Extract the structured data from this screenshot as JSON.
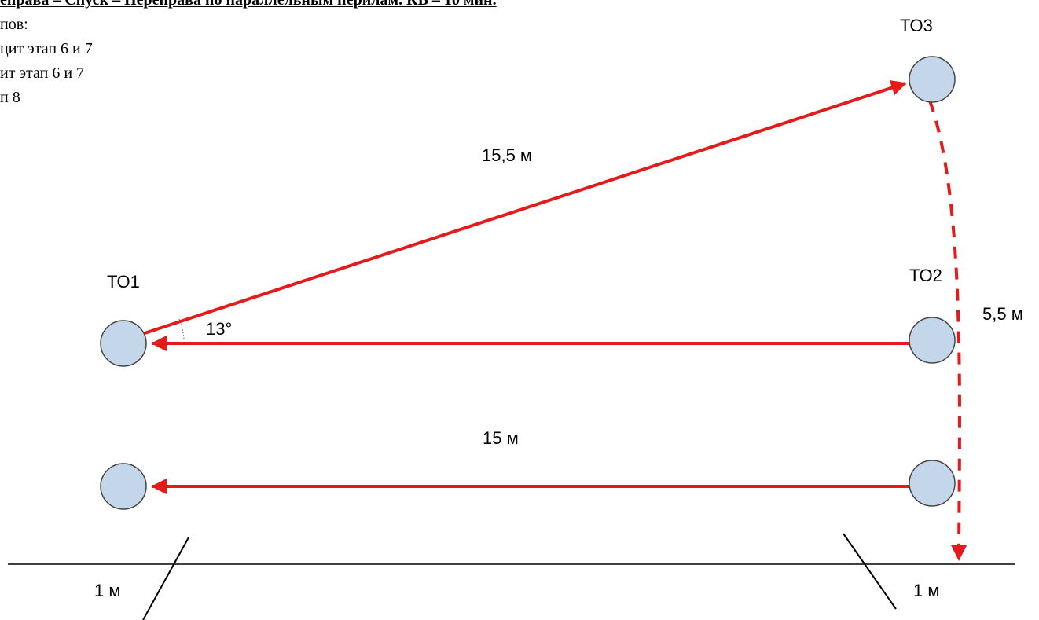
{
  "header": {
    "title": "еправа – Спуск – Переправа по параллельным перилам. КВ – 10 мин.",
    "lines": [
      "пов:",
      "цит этап 6 и 7",
      "ит этап 6 и 7",
      "п 8"
    ]
  },
  "diagram": {
    "points": {
      "to1": "ТО1",
      "to2": "ТО2",
      "to3": "ТО3"
    },
    "labels": {
      "diagonal": "15,5 м",
      "horizontal": "15 м",
      "vertical": "5,5 м",
      "angle": "13°",
      "left_offset": "1 м",
      "right_offset": "1 м"
    },
    "colors": {
      "rope": "#e31b1b",
      "node_fill": "#c4d6ea",
      "node_stroke": "#444444"
    }
  }
}
